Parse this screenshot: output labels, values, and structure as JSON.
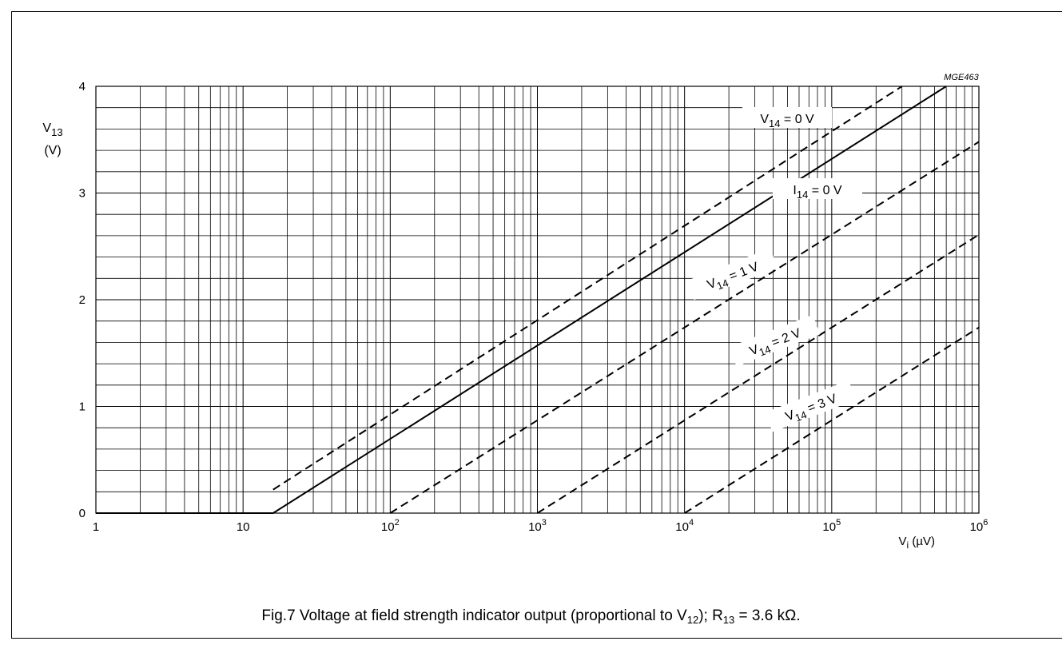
{
  "chart_data": {
    "type": "line",
    "figure_code": "MGE463",
    "x_scale": "log",
    "x_range": [
      1,
      1000000
    ],
    "y_range": [
      0,
      4
    ],
    "x_ticks": [
      {
        "value": 1,
        "base": "1",
        "exp": ""
      },
      {
        "value": 10,
        "base": "10",
        "exp": ""
      },
      {
        "value": 100,
        "base": "10",
        "exp": "2"
      },
      {
        "value": 1000,
        "base": "10",
        "exp": "3"
      },
      {
        "value": 10000,
        "base": "10",
        "exp": "4"
      },
      {
        "value": 100000,
        "base": "10",
        "exp": "5"
      },
      {
        "value": 1000000,
        "base": "10",
        "exp": "6"
      }
    ],
    "y_ticks": [
      "0",
      "1",
      "2",
      "3",
      "4"
    ],
    "xlabel": {
      "main": "V",
      "sub": "i",
      "unit": " (µV)"
    },
    "ylabel": {
      "main": "V",
      "sub": "13",
      "unit": "(V)"
    },
    "grid": true,
    "series": [
      {
        "label_main": "I",
        "label_sub": "14",
        "label_rest": " = 0 V",
        "style": "solid",
        "points": [
          [
            1,
            0
          ],
          [
            16,
            0
          ],
          [
            600000,
            4.0
          ]
        ]
      },
      {
        "label_main": "V",
        "label_sub": "14",
        "label_rest": " = 0 V",
        "style": "dashed",
        "points": [
          [
            16,
            0.22
          ],
          [
            300000,
            4.0
          ]
        ]
      },
      {
        "label_main": "V",
        "label_sub": "14",
        "label_rest": " = 1 V",
        "style": "dashed",
        "points": [
          [
            100,
            0
          ],
          [
            1000000,
            3.48
          ]
        ]
      },
      {
        "label_main": "V",
        "label_sub": "14",
        "label_rest": " = 2 V",
        "style": "dashed",
        "points": [
          [
            1000,
            0
          ],
          [
            1000000,
            2.61
          ]
        ]
      },
      {
        "label_main": "V",
        "label_sub": "14",
        "label_rest": " = 3 V",
        "style": "dashed",
        "points": [
          [
            10000,
            0
          ],
          [
            1000000,
            1.74
          ]
        ]
      }
    ]
  },
  "caption": {
    "prefix": "Fig.7  Voltage at field strength indicator output (proportional to V",
    "sub1": "12",
    "middle": "); R",
    "sub2": "13",
    "suffix": " = 3.6 kΩ."
  }
}
